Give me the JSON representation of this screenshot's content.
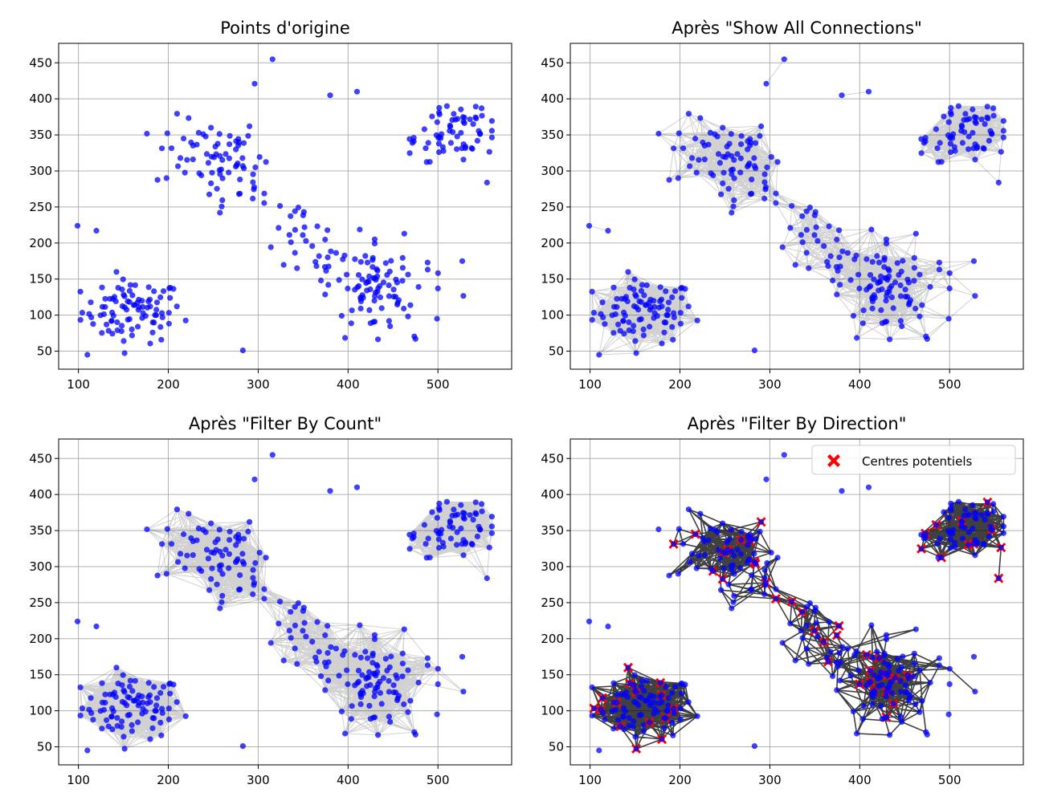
{
  "chart_data": [
    {
      "type": "scatter",
      "title": "Points d'origine",
      "xlim": [
        78,
        582
      ],
      "ylim": [
        25,
        477
      ],
      "xticks": [
        100,
        200,
        300,
        400,
        500
      ],
      "yticks": [
        50,
        100,
        150,
        200,
        250,
        300,
        350,
        400,
        450
      ],
      "grid": true,
      "point_color": "#0000ff",
      "edges": "none",
      "clusters": [
        {
          "center": [
            160,
            105
          ],
          "spread": [
            28,
            22
          ],
          "count": 90
        },
        {
          "center": [
            245,
            325
          ],
          "spread": [
            30,
            25
          ],
          "count": 55
        },
        {
          "center": [
            350,
            215
          ],
          "spread": [
            35,
            40
          ],
          "count": 70
        },
        {
          "center": [
            430,
            140
          ],
          "spread": [
            30,
            35
          ],
          "count": 70
        },
        {
          "center": [
            510,
            350
          ],
          "spread": [
            25,
            25
          ],
          "count": 65
        }
      ],
      "sample_points": [
        [
          99,
          224
        ],
        [
          120,
          217
        ],
        [
          316,
          455
        ],
        [
          296,
          421
        ],
        [
          380,
          405
        ],
        [
          410,
          410
        ],
        [
          527,
          175
        ],
        [
          475,
          67
        ],
        [
          283,
          51
        ],
        [
          499,
          95
        ],
        [
          500,
          137
        ],
        [
          110,
          45
        ]
      ]
    },
    {
      "type": "scatter",
      "title": "Après \"Show All Connections\"",
      "xlim": [
        78,
        582
      ],
      "ylim": [
        25,
        477
      ],
      "xticks": [
        100,
        200,
        300,
        400,
        500
      ],
      "yticks": [
        50,
        100,
        150,
        200,
        250,
        300,
        350,
        400,
        450
      ],
      "grid": true,
      "point_color": "#0000ff",
      "edges": "all"
    },
    {
      "type": "scatter",
      "title": "Après \"Filter By Count\"",
      "xlim": [
        78,
        582
      ],
      "ylim": [
        25,
        477
      ],
      "xticks": [
        100,
        200,
        300,
        400,
        500
      ],
      "yticks": [
        50,
        100,
        150,
        200,
        250,
        300,
        350,
        400,
        450
      ],
      "grid": true,
      "point_color": "#0000ff",
      "edges": "dense"
    },
    {
      "type": "scatter",
      "title": "Après \"Filter By Direction\"",
      "xlim": [
        78,
        582
      ],
      "ylim": [
        25,
        477
      ],
      "xticks": [
        100,
        200,
        300,
        400,
        500
      ],
      "yticks": [
        50,
        100,
        150,
        200,
        250,
        300,
        350,
        400,
        450
      ],
      "grid": true,
      "point_color": "#0000ff",
      "edges": "direction",
      "legend": {
        "label": "Centres potentiels",
        "marker": "X",
        "color": "#ff0000",
        "placement": "top-right"
      }
    }
  ]
}
